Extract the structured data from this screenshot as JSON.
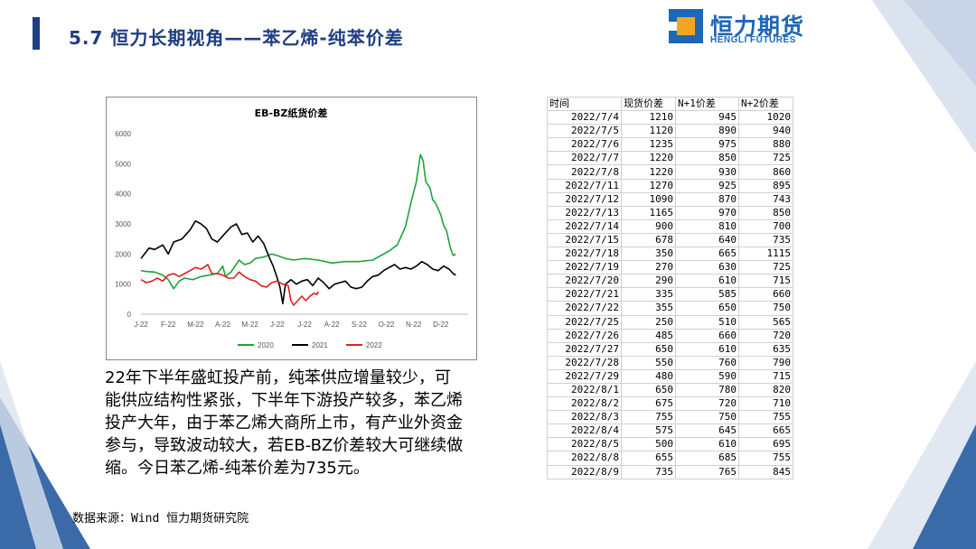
{
  "page": {
    "title": "5.7 恒力长期视角——苯乙烯-纯苯价差",
    "logo_cn": "恒力期货",
    "logo_en": "HENGLI FUTURES",
    "commentary": "22年下半年盛虹投产前，纯苯供应增量较少，可能供应结构性紧张，下半年下游投产较多，苯乙烯投产大年，由于苯乙烯大商所上市，有产业外资金参与，导致波动较大，若EB-BZ价差较大可继续做缩。今日苯乙烯-纯苯价差为735元。",
    "source": "数据来源：Wind  恒力期货研究院"
  },
  "colors": {
    "title": "#1f3e82",
    "logo_blue": "#1d67b7",
    "logo_orange": "#f1a621",
    "s2020": "#22a23a",
    "s2021": "#000000",
    "s2022": "#e02020"
  },
  "chart_data": [
    {
      "type": "line",
      "title": "EB-BZ纸货价差",
      "x_ticks": [
        "J-22",
        "F-22",
        "M-22",
        "A-22",
        "M-22",
        "J-22",
        "J-22",
        "A-22",
        "S-22",
        "O-22",
        "N-22",
        "D-22"
      ],
      "ylim": [
        0,
        6000
      ],
      "y_ticks": [
        0,
        1000,
        2000,
        3000,
        4000,
        5000,
        6000
      ],
      "legend_position": "bottom",
      "series": [
        {
          "name": "2020",
          "color": "#22a23a",
          "points": [
            [
              0,
              1450
            ],
            [
              0.2,
              1420
            ],
            [
              0.5,
              1400
            ],
            [
              0.8,
              1300
            ],
            [
              1.0,
              1150
            ],
            [
              1.2,
              850
            ],
            [
              1.4,
              1100
            ],
            [
              1.6,
              1200
            ],
            [
              1.9,
              1150
            ],
            [
              2.2,
              1250
            ],
            [
              2.5,
              1300
            ],
            [
              2.8,
              1350
            ],
            [
              3.0,
              1600
            ],
            [
              3.1,
              1250
            ],
            [
              3.3,
              1400
            ],
            [
              3.6,
              1800
            ],
            [
              3.8,
              1650
            ],
            [
              4.0,
              1700
            ],
            [
              4.2,
              1850
            ],
            [
              4.5,
              1900
            ],
            [
              4.8,
              2000
            ],
            [
              5.0,
              1950
            ],
            [
              5.3,
              1850
            ],
            [
              5.6,
              1800
            ],
            [
              6.0,
              1850
            ],
            [
              6.5,
              1800
            ],
            [
              7.0,
              1700
            ],
            [
              7.5,
              1750
            ],
            [
              8.0,
              1750
            ],
            [
              8.5,
              1800
            ],
            [
              8.8,
              1950
            ],
            [
              9.1,
              2100
            ],
            [
              9.4,
              2300
            ],
            [
              9.7,
              2900
            ],
            [
              9.9,
              3700
            ],
            [
              10.1,
              4400
            ],
            [
              10.25,
              5300
            ],
            [
              10.35,
              5100
            ],
            [
              10.45,
              4400
            ],
            [
              10.6,
              4200
            ],
            [
              10.7,
              3800
            ],
            [
              10.8,
              3700
            ],
            [
              11.0,
              3300
            ],
            [
              11.1,
              2950
            ],
            [
              11.2,
              2800
            ],
            [
              11.35,
              2200
            ],
            [
              11.45,
              1950
            ],
            [
              11.55,
              2000
            ]
          ]
        },
        {
          "name": "2021",
          "color": "#000000",
          "points": [
            [
              0,
              1850
            ],
            [
              0.3,
              2200
            ],
            [
              0.5,
              2150
            ],
            [
              0.8,
              2300
            ],
            [
              1.0,
              2000
            ],
            [
              1.2,
              2400
            ],
            [
              1.5,
              2500
            ],
            [
              1.8,
              2800
            ],
            [
              2.0,
              3100
            ],
            [
              2.2,
              3000
            ],
            [
              2.4,
              2850
            ],
            [
              2.6,
              2500
            ],
            [
              2.8,
              2400
            ],
            [
              3.0,
              2600
            ],
            [
              3.3,
              2900
            ],
            [
              3.5,
              3000
            ],
            [
              3.7,
              2650
            ],
            [
              3.9,
              2700
            ],
            [
              4.1,
              2400
            ],
            [
              4.3,
              2600
            ],
            [
              4.5,
              2350
            ],
            [
              4.7,
              1900
            ],
            [
              4.85,
              1600
            ],
            [
              5.0,
              1200
            ],
            [
              5.1,
              900
            ],
            [
              5.2,
              350
            ],
            [
              5.3,
              1000
            ],
            [
              5.5,
              1150
            ],
            [
              5.7,
              1000
            ],
            [
              5.9,
              1100
            ],
            [
              6.1,
              1150
            ],
            [
              6.3,
              950
            ],
            [
              6.5,
              1200
            ],
            [
              6.7,
              1050
            ],
            [
              6.9,
              850
            ],
            [
              7.1,
              1000
            ],
            [
              7.3,
              1050
            ],
            [
              7.5,
              1100
            ],
            [
              7.7,
              900
            ],
            [
              7.9,
              850
            ],
            [
              8.1,
              900
            ],
            [
              8.3,
              1100
            ],
            [
              8.5,
              1250
            ],
            [
              8.7,
              1300
            ],
            [
              8.9,
              1450
            ],
            [
              9.1,
              1550
            ],
            [
              9.3,
              1650
            ],
            [
              9.5,
              1500
            ],
            [
              9.7,
              1550
            ],
            [
              9.9,
              1500
            ],
            [
              10.1,
              1600
            ],
            [
              10.3,
              1750
            ],
            [
              10.5,
              1650
            ],
            [
              10.7,
              1500
            ],
            [
              10.9,
              1450
            ],
            [
              11.1,
              1600
            ],
            [
              11.3,
              1500
            ],
            [
              11.45,
              1350
            ],
            [
              11.55,
              1300
            ]
          ]
        },
        {
          "name": "2022",
          "color": "#e02020",
          "points": [
            [
              0,
              1150
            ],
            [
              0.2,
              1050
            ],
            [
              0.4,
              1100
            ],
            [
              0.6,
              1200
            ],
            [
              0.8,
              1100
            ],
            [
              1.0,
              1300
            ],
            [
              1.2,
              1350
            ],
            [
              1.4,
              1250
            ],
            [
              1.6,
              1350
            ],
            [
              1.8,
              1450
            ],
            [
              2.0,
              1550
            ],
            [
              2.2,
              1500
            ],
            [
              2.3,
              1550
            ],
            [
              2.45,
              1650
            ],
            [
              2.6,
              1350
            ],
            [
              2.8,
              1350
            ],
            [
              3.0,
              1300
            ],
            [
              3.2,
              1200
            ],
            [
              3.4,
              1200
            ],
            [
              3.6,
              1400
            ],
            [
              3.8,
              1250
            ],
            [
              4.0,
              1150
            ],
            [
              4.2,
              1100
            ],
            [
              4.4,
              950
            ],
            [
              4.6,
              900
            ],
            [
              4.8,
              1050
            ],
            [
              5.0,
              1100
            ],
            [
              5.2,
              1000
            ],
            [
              5.4,
              950
            ],
            [
              5.5,
              450
            ],
            [
              5.6,
              300
            ],
            [
              5.75,
              450
            ],
            [
              5.9,
              600
            ],
            [
              6.05,
              450
            ],
            [
              6.2,
              600
            ],
            [
              6.35,
              700
            ],
            [
              6.45,
              650
            ],
            [
              6.5,
              750
            ]
          ]
        }
      ]
    },
    {
      "type": "table",
      "columns": [
        "时间",
        "现货价差",
        "N+1价差",
        "N+2价差"
      ],
      "rows": [
        [
          "2022/7/4",
          "1210",
          "945",
          "1020"
        ],
        [
          "2022/7/5",
          "1120",
          "890",
          "940"
        ],
        [
          "2022/7/6",
          "1235",
          "975",
          "880"
        ],
        [
          "2022/7/7",
          "1220",
          "850",
          "725"
        ],
        [
          "2022/7/8",
          "1220",
          "930",
          "860"
        ],
        [
          "2022/7/11",
          "1270",
          "925",
          "895"
        ],
        [
          "2022/7/12",
          "1090",
          "870",
          "743"
        ],
        [
          "2022/7/13",
          "1165",
          "970",
          "850"
        ],
        [
          "2022/7/14",
          "900",
          "810",
          "700"
        ],
        [
          "2022/7/15",
          "678",
          "640",
          "735"
        ],
        [
          "2022/7/18",
          "350",
          "665",
          "1115"
        ],
        [
          "2022/7/19",
          "270",
          "630",
          "725"
        ],
        [
          "2022/7/20",
          "290",
          "610",
          "715"
        ],
        [
          "2022/7/21",
          "335",
          "585",
          "660"
        ],
        [
          "2022/7/22",
          "355",
          "650",
          "750"
        ],
        [
          "2022/7/25",
          "250",
          "510",
          "565"
        ],
        [
          "2022/7/26",
          "485",
          "660",
          "720"
        ],
        [
          "2022/7/27",
          "650",
          "610",
          "635"
        ],
        [
          "2022/7/28",
          "550",
          "760",
          "790"
        ],
        [
          "2022/7/29",
          "480",
          "590",
          "715"
        ],
        [
          "2022/8/1",
          "650",
          "780",
          "820"
        ],
        [
          "2022/8/2",
          "675",
          "720",
          "710"
        ],
        [
          "2022/8/3",
          "755",
          "750",
          "755"
        ],
        [
          "2022/8/4",
          "575",
          "645",
          "665"
        ],
        [
          "2022/8/5",
          "500",
          "610",
          "695"
        ],
        [
          "2022/8/8",
          "655",
          "685",
          "755"
        ],
        [
          "2022/8/9",
          "735",
          "765",
          "845"
        ]
      ]
    }
  ]
}
